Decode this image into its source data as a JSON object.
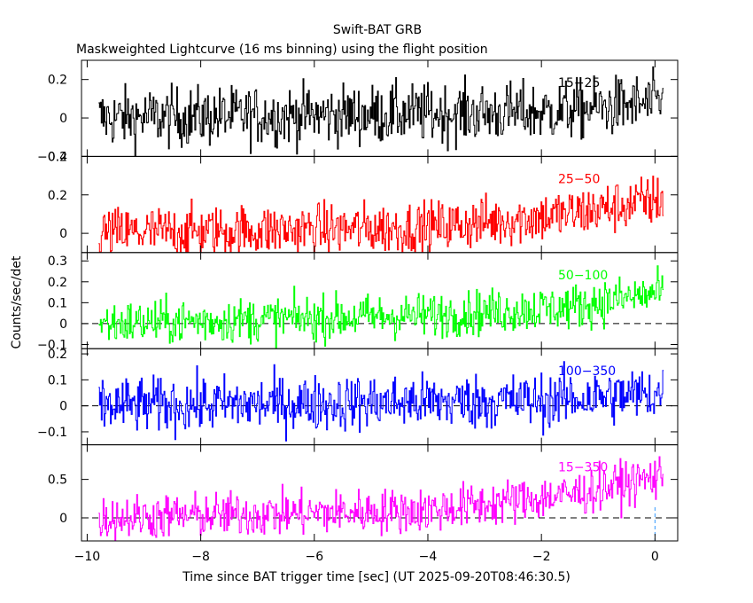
{
  "header": {
    "title": "Swift-BAT GRB",
    "subtitle": "Maskweighted Lightcurve (16 ms binning) using the flight position"
  },
  "axes": {
    "xlabel": "Time since BAT trigger time [sec] (UT 2025-09-20T08:46:30.5)",
    "ylabel": "Counts/sec/det"
  },
  "chart_data": {
    "type": "line",
    "title": "Maskweighted Lightcurve (16 ms binning) using the flight position",
    "xlabel": "Time since BAT trigger time [sec] (UT 2025-09-20T08:46:30.5)",
    "ylabel": "Counts/sec/det",
    "xlim": [
      -10.1,
      0.4
    ],
    "x_ticks": [
      "−10",
      "−8",
      "−6",
      "−4",
      "−2",
      "0"
    ],
    "x_tick_values": [
      -10,
      -8,
      -6,
      -4,
      -2,
      0
    ],
    "trigger_marker_x": 0,
    "data_start_x": -9.8,
    "data_end_x": 0.15,
    "bin_width_sec": 0.016,
    "panels": [
      {
        "name": "15-25 keV",
        "label": "15−25",
        "color": "#000000",
        "ylim": [
          -0.2,
          0.3
        ],
        "y_ticks": [
          "0.2",
          "0",
          "−0.2"
        ],
        "y_tick_values": [
          0.2,
          0,
          -0.2
        ],
        "dashed_zero": false,
        "trend": [
          [
            -9.8,
            0.0
          ],
          [
            -2,
            0.03
          ],
          [
            0.15,
            0.08
          ]
        ],
        "noise": 0.16
      },
      {
        "name": "25-50 keV",
        "label": "25−50",
        "color": "#ff0000",
        "ylim": [
          -0.1,
          0.4
        ],
        "y_ticks": [
          "0.4",
          "0.2",
          "0"
        ],
        "y_tick_values": [
          0.4,
          0.2,
          0
        ],
        "dashed_zero": false,
        "trend": [
          [
            -9.8,
            0.0
          ],
          [
            -4,
            0.03
          ],
          [
            -1.5,
            0.1
          ],
          [
            0.15,
            0.18
          ]
        ],
        "noise": 0.14
      },
      {
        "name": "50-100 keV",
        "label": "50−100",
        "color": "#00ff00",
        "ylim": [
          -0.12,
          0.34
        ],
        "y_ticks": [
          "0.3",
          "0.2",
          "0.1",
          "0",
          "−0.1"
        ],
        "y_tick_values": [
          0.3,
          0.2,
          0.1,
          0,
          -0.1
        ],
        "dashed_zero": true,
        "trend": [
          [
            -9.8,
            0.0
          ],
          [
            -4,
            0.04
          ],
          [
            -1.5,
            0.08
          ],
          [
            0.15,
            0.15
          ]
        ],
        "noise": 0.11
      },
      {
        "name": "100-350 keV",
        "label": "100−350",
        "color": "#0000ff",
        "ylim": [
          -0.15,
          0.22
        ],
        "y_ticks": [
          "0.2",
          "0.1",
          "0",
          "−0.1"
        ],
        "y_tick_values": [
          0.2,
          0.1,
          0,
          -0.1
        ],
        "dashed_zero": true,
        "trend": [
          [
            -9.8,
            0.0
          ],
          [
            -2,
            0.02
          ],
          [
            0.15,
            0.05
          ]
        ],
        "noise": 0.11
      },
      {
        "name": "15-350 keV",
        "label": "15−350",
        "color": "#ff00ff",
        "ylim": [
          -0.3,
          0.95
        ],
        "y_ticks": [
          "0.5",
          "0"
        ],
        "y_tick_values": [
          0.5,
          0
        ],
        "dashed_zero": true,
        "trend": [
          [
            -9.8,
            0.0
          ],
          [
            -4,
            0.1
          ],
          [
            -1.5,
            0.3
          ],
          [
            0.15,
            0.55
          ]
        ],
        "noise": 0.3
      }
    ]
  }
}
